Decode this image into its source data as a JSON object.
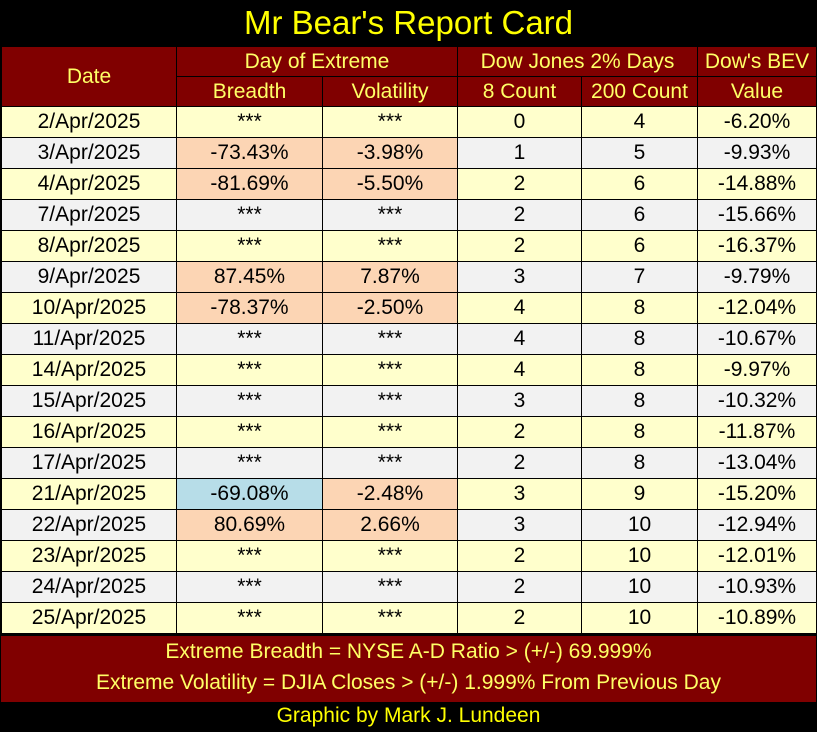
{
  "title": "Mr Bear's Report Card",
  "header": {
    "date": "Date",
    "extreme_group": "Day of Extreme",
    "dow_group": "Dow Jones 2% Days",
    "bev_group": "Dow's BEV",
    "breadth": "Breadth",
    "volatility": "Volatility",
    "count8": "8 Count",
    "count200": "200 Count",
    "bev_value": "Value"
  },
  "rows": [
    {
      "date": "2/Apr/2025",
      "breadth": "***",
      "volatility": "***",
      "c8": "0",
      "c200": "4",
      "bev": "-6.20%"
    },
    {
      "date": "3/Apr/2025",
      "breadth": "-73.43%",
      "volatility": "-3.98%",
      "c8": "1",
      "c200": "5",
      "bev": "-9.93%"
    },
    {
      "date": "4/Apr/2025",
      "breadth": "-81.69%",
      "volatility": "-5.50%",
      "c8": "2",
      "c200": "6",
      "bev": "-14.88%"
    },
    {
      "date": "7/Apr/2025",
      "breadth": "***",
      "volatility": "***",
      "c8": "2",
      "c200": "6",
      "bev": "-15.66%"
    },
    {
      "date": "8/Apr/2025",
      "breadth": "***",
      "volatility": "***",
      "c8": "2",
      "c200": "6",
      "bev": "-16.37%"
    },
    {
      "date": "9/Apr/2025",
      "breadth": "87.45%",
      "volatility": "7.87%",
      "c8": "3",
      "c200": "7",
      "bev": "-9.79%"
    },
    {
      "date": "10/Apr/2025",
      "breadth": "-78.37%",
      "volatility": "-2.50%",
      "c8": "4",
      "c200": "8",
      "bev": "-12.04%"
    },
    {
      "date": "11/Apr/2025",
      "breadth": "***",
      "volatility": "***",
      "c8": "4",
      "c200": "8",
      "bev": "-10.67%"
    },
    {
      "date": "14/Apr/2025",
      "breadth": "***",
      "volatility": "***",
      "c8": "4",
      "c200": "8",
      "bev": "-9.97%"
    },
    {
      "date": "15/Apr/2025",
      "breadth": "***",
      "volatility": "***",
      "c8": "3",
      "c200": "8",
      "bev": "-10.32%"
    },
    {
      "date": "16/Apr/2025",
      "breadth": "***",
      "volatility": "***",
      "c8": "2",
      "c200": "8",
      "bev": "-11.87%"
    },
    {
      "date": "17/Apr/2025",
      "breadth": "***",
      "volatility": "***",
      "c8": "2",
      "c200": "8",
      "bev": "-13.04%"
    },
    {
      "date": "21/Apr/2025",
      "breadth": "-69.08%",
      "volatility": "-2.48%",
      "c8": "3",
      "c200": "9",
      "bev": "-15.20%"
    },
    {
      "date": "22/Apr/2025",
      "breadth": "80.69%",
      "volatility": "2.66%",
      "c8": "3",
      "c200": "10",
      "bev": "-12.94%"
    },
    {
      "date": "23/Apr/2025",
      "breadth": "***",
      "volatility": "***",
      "c8": "2",
      "c200": "10",
      "bev": "-12.01%"
    },
    {
      "date": "24/Apr/2025",
      "breadth": "***",
      "volatility": "***",
      "c8": "2",
      "c200": "10",
      "bev": "-10.93%"
    },
    {
      "date": "25/Apr/2025",
      "breadth": "***",
      "volatility": "***",
      "c8": "2",
      "c200": "10",
      "bev": "-10.89%"
    }
  ],
  "highlight_colors": {
    "extreme": "#fcd5b4",
    "breadth_blue": "#b7dde8",
    "header": "#800000",
    "row_odd": "#ffffcc",
    "row_even": "#f2f2f2"
  },
  "footer": {
    "line1": "Extreme Breadth = NYSE A-D Ratio > (+/-) 69.999%",
    "line2": "Extreme Volatility = DJIA Closes > (+/-) 1.999% From Previous Day"
  },
  "credit": "Graphic by Mark J. Lundeen"
}
